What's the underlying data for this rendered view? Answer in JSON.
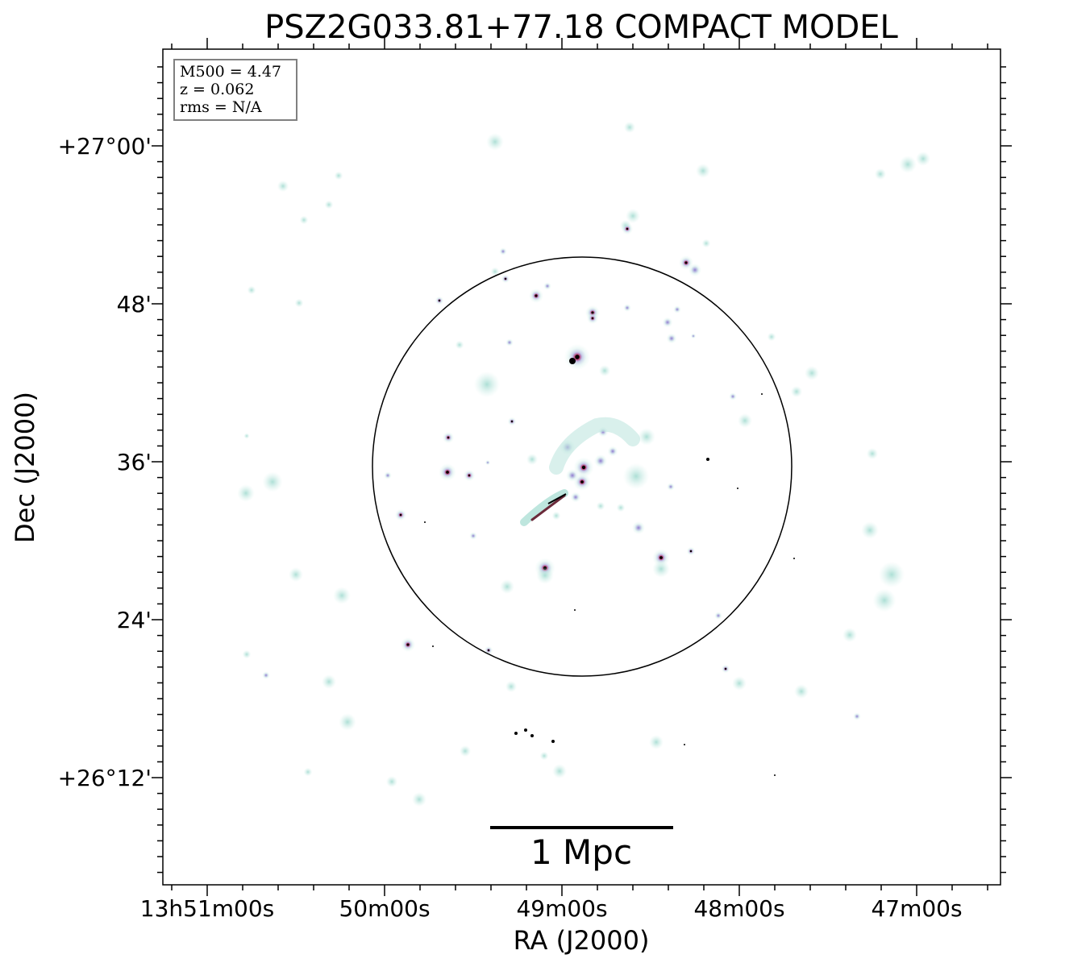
{
  "title": "PSZ2G033.81+77.18 COMPACT MODEL",
  "info_box": {
    "line1": "M500 = 4.47",
    "line2": "z = 0.062",
    "line3": "rms = N/A"
  },
  "axes": {
    "xlabel": "RA (J2000)",
    "ylabel": "Dec (J2000)",
    "ra_ticks": [
      "13h51m00s",
      "50m00s",
      "49m00s",
      "48m00s",
      "47m00s"
    ],
    "dec_ticks": [
      "+27°00'",
      "48'",
      "36'",
      "24'",
      "+26°12'"
    ]
  },
  "scale_bar": {
    "label": "1 Mpc"
  },
  "colors": {
    "diffuse": "#bfe6df",
    "compact": "#a58ad8",
    "bright": "#c0305a",
    "core": "#000000"
  }
}
